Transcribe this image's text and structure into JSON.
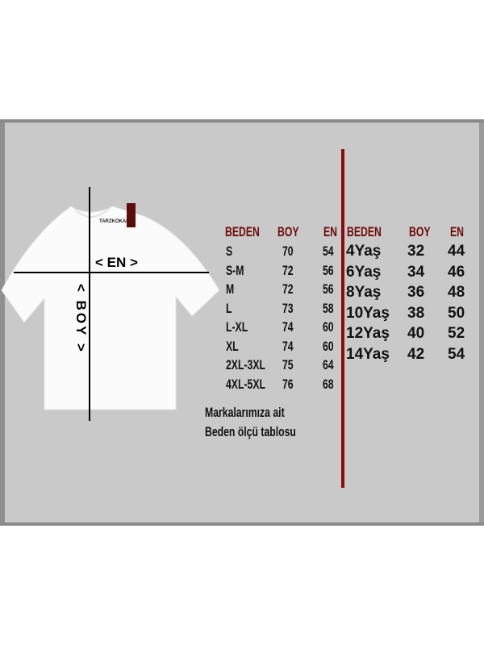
{
  "shirt": {
    "brand_tag": "TARZKOKAK",
    "en_label": "< EN >",
    "boy_label": "< BOY >"
  },
  "adult_table": {
    "headers": [
      "BEDEN",
      "BOY",
      "EN"
    ],
    "rows": [
      [
        "S",
        "70",
        "54"
      ],
      [
        "S-M",
        "72",
        "56"
      ],
      [
        "M",
        "72",
        "56"
      ],
      [
        "L",
        "73",
        "58"
      ],
      [
        "L-XL",
        "74",
        "60"
      ],
      [
        "XL",
        "74",
        "60"
      ],
      [
        "2XL-3XL",
        "75",
        "64"
      ],
      [
        "4XL-5XL",
        "76",
        "68"
      ]
    ]
  },
  "kids_table": {
    "headers": [
      "BEDEN",
      "BOY",
      "EN"
    ],
    "rows": [
      [
        "4Yaş",
        "32",
        "44"
      ],
      [
        "6Yaş",
        "34",
        "46"
      ],
      [
        "8Yaş",
        "36",
        "48"
      ],
      [
        "10Yaş",
        "38",
        "50"
      ],
      [
        "12Yaş",
        "40",
        "52"
      ],
      [
        "14Yaş",
        "42",
        "54"
      ]
    ]
  },
  "note": {
    "line1": "Markalarımıza ait",
    "line2": "Beden ölçü tablosu"
  },
  "colors": {
    "header": "#6e0a0a",
    "divider": "#8b0a0a",
    "panel": "#c9c9c9"
  }
}
